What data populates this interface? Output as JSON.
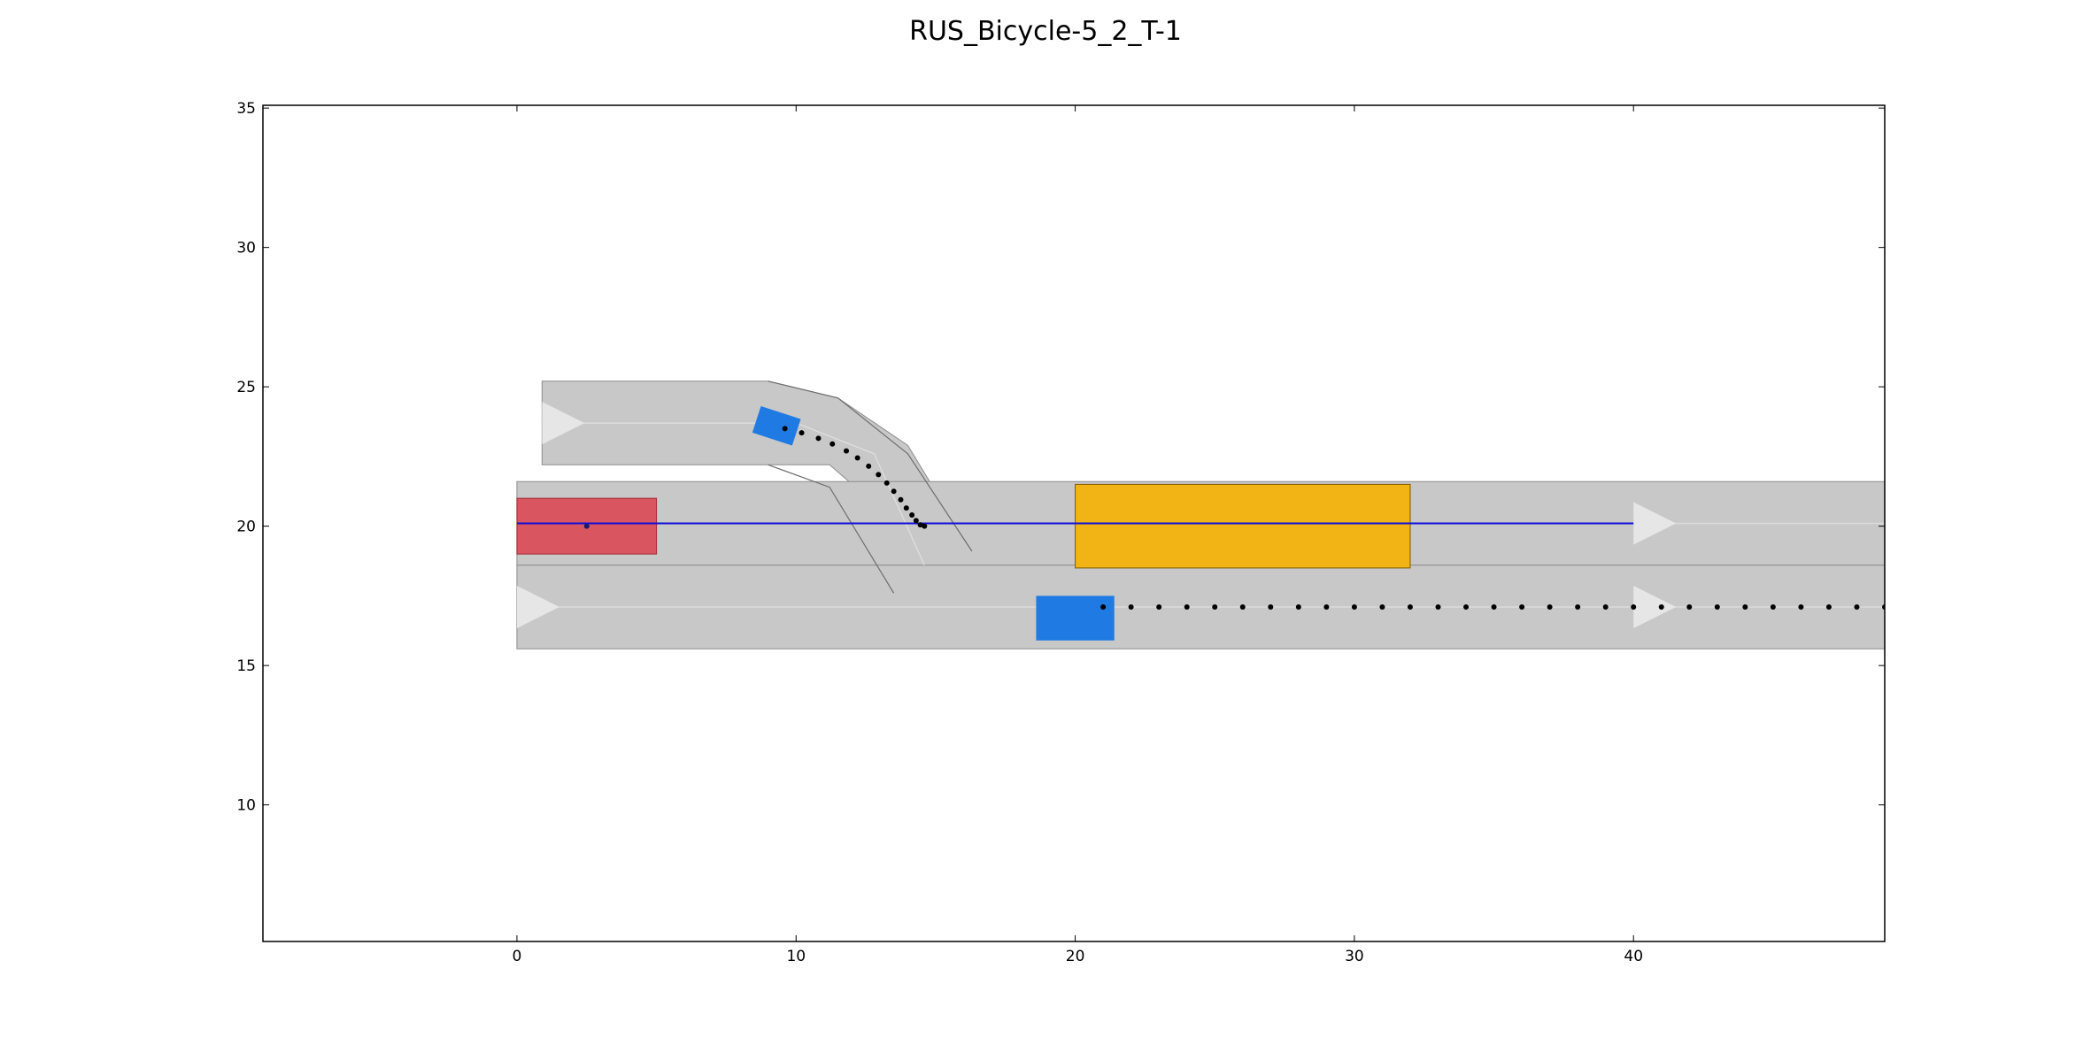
{
  "chart_data": {
    "type": "scatter",
    "title": "RUS_Bicycle-5_2_T-1",
    "xlabel": "",
    "ylabel": "",
    "xlim": [
      -9.1,
      49
    ],
    "ylim": [
      5.1,
      35.1
    ],
    "x_ticks": [
      0,
      10,
      20,
      30,
      40
    ],
    "y_ticks": [
      10,
      15,
      20,
      25,
      30,
      35
    ],
    "grid": false,
    "colors": {
      "road": "#c8c8c8",
      "road_edge": "#8c8c8c",
      "lane_arrow": "#e6e6e6",
      "ego_vehicle": "#d9555f",
      "obstacle_static": "#f1b414",
      "obstacle_dynamic": "#1f7be3",
      "planned_route": "#1010d8",
      "trajectory_points": "#000000"
    },
    "scene": {
      "lanes": [
        {
          "name": "upper-branch",
          "polygon": [
            [
              0.9,
              25.2
            ],
            [
              9,
              25.2
            ],
            [
              11.5,
              24.6
            ],
            [
              14,
              22.9
            ],
            [
              16.3,
              19.1
            ],
            [
              14.7,
              18.5
            ],
            [
              13.5,
              20.2
            ],
            [
              11.2,
              22.2
            ],
            [
              9,
              22.2
            ],
            [
              0.9,
              22.2
            ]
          ],
          "arrow": [
            0.9,
            23.7
          ]
        },
        {
          "name": "upper-main-lane",
          "polygon": [
            [
              0,
              21.6
            ],
            [
              49,
              21.6
            ],
            [
              49,
              18.6
            ],
            [
              0,
              18.6
            ]
          ],
          "arrow": [
            40,
            20.1
          ]
        },
        {
          "name": "lower-main-lane",
          "polygon": [
            [
              0,
              18.6
            ],
            [
              49,
              18.6
            ],
            [
              49,
              15.6
            ],
            [
              0,
              15.6
            ]
          ],
          "arrow": [
            0,
            17.1
          ],
          "arrow2": [
            40,
            17.1
          ]
        }
      ],
      "branch_edges": [
        [
          [
            9,
            25.2
          ],
          [
            11.5,
            24.6
          ],
          [
            14,
            22.6
          ],
          [
            16.3,
            19.1
          ]
        ],
        [
          [
            9,
            22.2
          ],
          [
            11.2,
            21.4
          ],
          [
            13.5,
            17.6
          ]
        ],
        [
          [
            10,
            23.7
          ],
          [
            12.8,
            22.6
          ],
          [
            14.6,
            18.6
          ]
        ]
      ],
      "ego": {
        "x": 0,
        "y": 19,
        "w": 5,
        "h": 2,
        "center": [
          2.5,
          20
        ]
      },
      "planned_route": {
        "x_start": 0,
        "x_end": 40,
        "y": 20.1
      },
      "static_obstacle": {
        "x": 20,
        "y": 18.5,
        "w": 12,
        "h": 3
      },
      "bicycle_on_branch": {
        "center": [
          9.3,
          23.6
        ],
        "w": 1.5,
        "h": 1,
        "angle": -18
      },
      "car_in_lower_lane": {
        "x": 18.6,
        "y": 15.9,
        "w": 2.8,
        "h": 1.6
      },
      "branch_trajectory": [
        [
          9.6,
          23.5
        ],
        [
          10.2,
          23.35
        ],
        [
          10.8,
          23.15
        ],
        [
          11.3,
          22.95
        ],
        [
          11.8,
          22.7
        ],
        [
          12.2,
          22.45
        ],
        [
          12.6,
          22.15
        ],
        [
          12.95,
          21.85
        ],
        [
          13.25,
          21.55
        ],
        [
          13.5,
          21.25
        ],
        [
          13.75,
          20.95
        ],
        [
          13.95,
          20.65
        ],
        [
          14.15,
          20.4
        ],
        [
          14.3,
          20.2
        ],
        [
          14.45,
          20.05
        ],
        [
          14.6,
          20.0
        ]
      ],
      "lower_trajectory_x_start": 21,
      "lower_trajectory_x_step": 1,
      "lower_trajectory_x_end": 49,
      "lower_trajectory_y": 17.1
    }
  }
}
